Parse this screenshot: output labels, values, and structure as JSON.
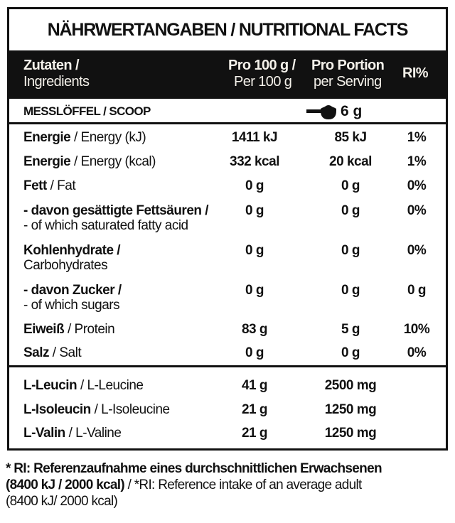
{
  "title": "NÄHRWERTANGABEN / NUTRITIONAL FACTS",
  "header": {
    "ingredients_de": "Zutaten /",
    "ingredients_en": "Ingredients",
    "per100_de": "Pro 100 g /",
    "per100_en": "Per 100 g",
    "portion_de": "Pro Portion",
    "portion_en": "per Serving",
    "ri": "RI%"
  },
  "scoop": {
    "label": "MESSLÖFFEL / SCOOP",
    "icon": "scoop-icon",
    "amount": "6 g"
  },
  "nutrients": [
    {
      "de": "Energie",
      "en": " / Energy (kJ)",
      "per100": "1411 kJ",
      "portion": "85 kJ",
      "ri": "1%"
    },
    {
      "de": "Energie",
      "en": " / Energy (kcal)",
      "per100": "332 kcal",
      "portion": "20 kcal",
      "ri": "1%"
    },
    {
      "de": "Fett",
      "en": " / Fat",
      "per100": "0 g",
      "portion": "0 g",
      "ri": "0%"
    },
    {
      "de": "- davon gesättigte Fettsäuren /",
      "en": "- of which saturated fatty acid",
      "per100": "0 g",
      "portion": "0 g",
      "ri": "0%"
    },
    {
      "de": "Kohlenhydrate /",
      "en": "Carbohydrates",
      "per100": "0 g",
      "portion": "0 g",
      "ri": "0%"
    },
    {
      "de": "- davon Zucker /",
      "en": "- of which sugars",
      "per100": "0 g",
      "portion": "0 g",
      "ri": "0 g"
    },
    {
      "de": "Eiweiß",
      "en": " / Protein",
      "per100": "83 g",
      "portion": "5 g",
      "ri": "10%"
    },
    {
      "de": "Salz",
      "en": " / Salt",
      "per100": "0 g",
      "portion": "0 g",
      "ri": "0%"
    }
  ],
  "amino": [
    {
      "de": "L-Leucin ",
      "en": " / L-Leucine",
      "per100": "41 g",
      "portion": "2500 mg"
    },
    {
      "de": "L-Isoleucin",
      "en": " / L-Isoleucine",
      "per100": "21 g",
      "portion": "1250 mg"
    },
    {
      "de": "L-Valin",
      "en": " / L-Valine",
      "per100": "21 g",
      "portion": "1250 mg"
    }
  ],
  "footnote": {
    "bold1": "* RI: Referenzaufnahme eines durchschnittlichen Erwachsenen",
    "bold2": "(8400 kJ / 2000 kcal)",
    "normal": " / *RI: Reference intake of an average adult",
    "normal2": "(8400 kJ/ 2000 kcal)"
  }
}
